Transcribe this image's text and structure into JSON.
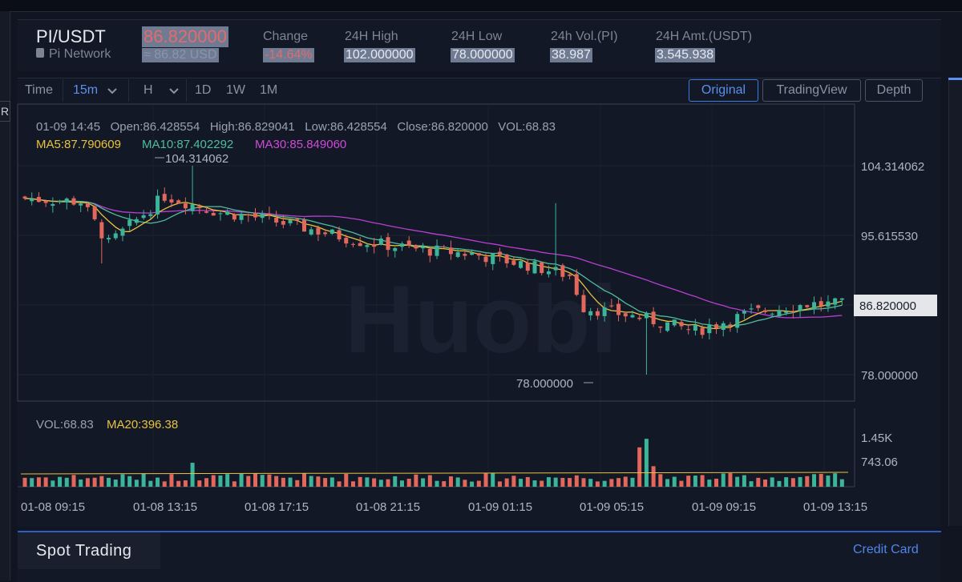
{
  "header": {
    "pair": "PI/USDT",
    "name": "Pi Network",
    "price": "86.820000",
    "price_usd": "≈ 86.82 USD",
    "stats": [
      {
        "label": "Change",
        "value": "-14.64%"
      },
      {
        "label": "24H High",
        "value": "102.000000"
      },
      {
        "label": "24H Low",
        "value": "78.000000"
      },
      {
        "label": "24h Vol.(PI)",
        "value": "38.987"
      },
      {
        "label": "24H Amt.(USDT)",
        "value": "3.545.938"
      }
    ]
  },
  "toolbar": {
    "time_label": "Time",
    "interval": "15m",
    "h_label": "H",
    "periods": [
      "1D",
      "1W",
      "1M"
    ],
    "views": [
      "Original",
      "TradingView",
      "Depth"
    ]
  },
  "left_stub": "R",
  "info": {
    "line": "01-09 14:45   Open:86.428554   High:86.829041   Low:86.428554   Close:86.820000   VOL:68.83",
    "ma5": "MA5:87.790609",
    "ma10": "MA10:87.402292",
    "ma30": "MA30:85.849060",
    "vol": "VOL:68.83",
    "ma20": "MA20:396.38"
  },
  "watermark": "Huobi",
  "chart_data": {
    "type": "candlestick",
    "interval": "15m",
    "price_axis_ticks": [
      "104.314062",
      "95.615530",
      "78.000000"
    ],
    "current_price_label": "86.820000",
    "high_marker": "104.314062",
    "low_marker": "78.000000",
    "volume_axis_ticks": [
      "1.45K",
      "743.06"
    ],
    "x_tick_labels": [
      "01-08 09:15",
      "01-08 13:15",
      "01-08 17:15",
      "01-08 21:15",
      "01-09 01:15",
      "01-09 05:15",
      "01-09 09:15",
      "01-09 13:15"
    ],
    "close_trend": [
      {
        "x": "01-08 09:15",
        "y": 100.2
      },
      {
        "x": "01-08 11:15",
        "y": 99.8
      },
      {
        "x": "01-08 12:15",
        "y": 94.5
      },
      {
        "x": "01-08 13:15",
        "y": 97.5
      },
      {
        "x": "01-08 14:15",
        "y": 100.5
      },
      {
        "x": "01-08 16:15",
        "y": 98.4
      },
      {
        "x": "01-08 17:15",
        "y": 98.0
      },
      {
        "x": "01-08 19:15",
        "y": 96.5
      },
      {
        "x": "01-08 21:15",
        "y": 94.8
      },
      {
        "x": "01-08 23:15",
        "y": 93.8
      },
      {
        "x": "01-09 01:15",
        "y": 93.2
      },
      {
        "x": "01-09 03:15",
        "y": 91.8
      },
      {
        "x": "01-09 04:45",
        "y": 90.5
      },
      {
        "x": "01-09 05:15",
        "y": 86.5
      },
      {
        "x": "01-09 07:15",
        "y": 85.2
      },
      {
        "x": "01-09 09:15",
        "y": 83.5
      },
      {
        "x": "01-09 11:15",
        "y": 85.8
      },
      {
        "x": "01-09 13:15",
        "y": 86.9
      },
      {
        "x": "01-09 14:45",
        "y": 86.82
      }
    ],
    "colors": {
      "up": "#3bb49a",
      "down": "#e2685c",
      "ma5": "#e9c23e",
      "ma10": "#4fbd9c",
      "ma30": "#b83fd1"
    }
  },
  "footer": {
    "tab": "Spot Trading",
    "link": "Credit Card"
  }
}
